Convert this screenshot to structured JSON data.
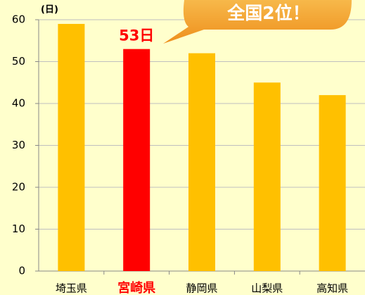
{
  "chart_data": {
    "type": "bar",
    "y_unit_label": "(日)",
    "annotation": "全国2位！",
    "categories": [
      "埼玉県",
      "宮崎県",
      "静岡県",
      "山梨県",
      "高知県"
    ],
    "values": [
      59,
      53,
      52,
      45,
      42
    ],
    "value_labels": [
      null,
      "53日",
      null,
      null,
      null
    ],
    "colors": [
      "#ffc000",
      "#ff0000",
      "#ffc000",
      "#ffc000",
      "#ffc000"
    ],
    "ylim": [
      0,
      60
    ],
    "yticks": [
      0,
      10,
      20,
      30,
      40,
      50,
      60
    ],
    "grid": true
  }
}
